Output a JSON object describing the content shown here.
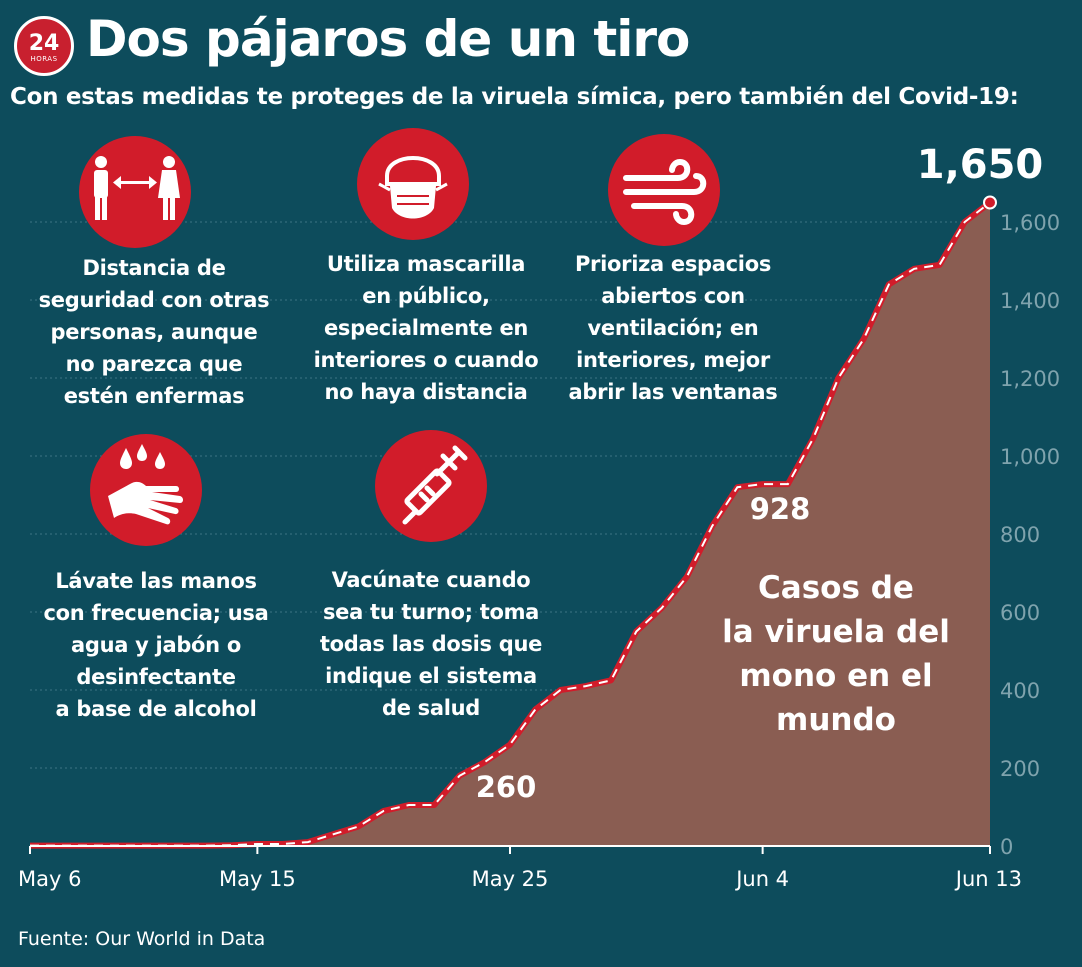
{
  "header": {
    "logo_number": "24",
    "logo_text": "HORAS",
    "title": "Dos pájaros de un tiro",
    "subtitle": "Con estas medidas te proteges de la viruela símica, pero también del Covid-19:"
  },
  "tips": [
    {
      "icon": "social-distance-icon",
      "text": "Distancia de\nseguridad con otras\npersonas, aunque\nno parezca que\nestén enfermas"
    },
    {
      "icon": "face-mask-icon",
      "text": "Utiliza mascarilla\nen público,\nespecialmente en\ninteriores o cuando\nno haya distancia"
    },
    {
      "icon": "wind-ventilation-icon",
      "text": "Prioriza espacios\nabiertos con\nventilación; en\ninteriores, mejor\nabrir las ventanas"
    },
    {
      "icon": "hand-washing-icon",
      "text": "Lávate las manos\ncon frecuencia; usa\nagua y jabón o\ndesinfectante\na base de alcohol"
    },
    {
      "icon": "vaccine-syringe-icon",
      "text": "Vacúnate cuando\nsea tu turno; toma\ntodas las dosis que\nindique el sistema\nde salud"
    }
  ],
  "colors": {
    "background": "#0d4c5c",
    "area_fill": "#8a5d52",
    "line": "#d11c2a",
    "icon_circle": "#d11c2a",
    "axis_tick_text": "#7fa3ad",
    "gridline": "#3d7583"
  },
  "chart_data": {
    "type": "area",
    "title": "",
    "xlabel": "",
    "ylabel": "",
    "annotation": "Casos de\nla viruela del\nmono en el\nmundo",
    "x": [
      "May 6",
      "May 7",
      "May 8",
      "May 9",
      "May 10",
      "May 11",
      "May 12",
      "May 13",
      "May 14",
      "May 15",
      "May 16",
      "May 17",
      "May 18",
      "May 19",
      "May 20",
      "May 21",
      "May 22",
      "May 23",
      "May 24",
      "May 25",
      "May 26",
      "May 27",
      "May 28",
      "May 29",
      "May 30",
      "May 31",
      "Jun 1",
      "Jun 2",
      "Jun 3",
      "Jun 4",
      "Jun 5",
      "Jun 6",
      "Jun 7",
      "Jun 8",
      "Jun 9",
      "Jun 10",
      "Jun 11",
      "Jun 12",
      "Jun 13"
    ],
    "values": [
      1,
      1,
      1,
      1,
      1,
      1,
      1,
      1,
      2,
      5,
      5,
      10,
      30,
      50,
      90,
      105,
      105,
      180,
      215,
      260,
      350,
      400,
      410,
      425,
      550,
      610,
      690,
      820,
      920,
      928,
      928,
      1045,
      1200,
      1300,
      1440,
      1480,
      1490,
      1600,
      1650
    ],
    "x_ticks": [
      "May 6",
      "May 15",
      "May 25",
      "Jun 4",
      "Jun 13"
    ],
    "x_tick_index": [
      0,
      9,
      19,
      29,
      38
    ],
    "ylim": [
      0,
      1650
    ],
    "y_ticks": [
      0,
      200,
      400,
      600,
      800,
      1000,
      1200,
      1400,
      1600
    ],
    "y_tick_labels": [
      "0",
      "200",
      "400",
      "600",
      "800",
      "1,000",
      "1,200",
      "1,400",
      "1,600"
    ],
    "data_labels": [
      {
        "index": 19,
        "text": "260"
      },
      {
        "index": 29,
        "text": "928"
      },
      {
        "index": 38,
        "text": "1,650"
      }
    ],
    "grid": true,
    "y_axis_position": "right"
  },
  "source": "Fuente: Our World in Data"
}
